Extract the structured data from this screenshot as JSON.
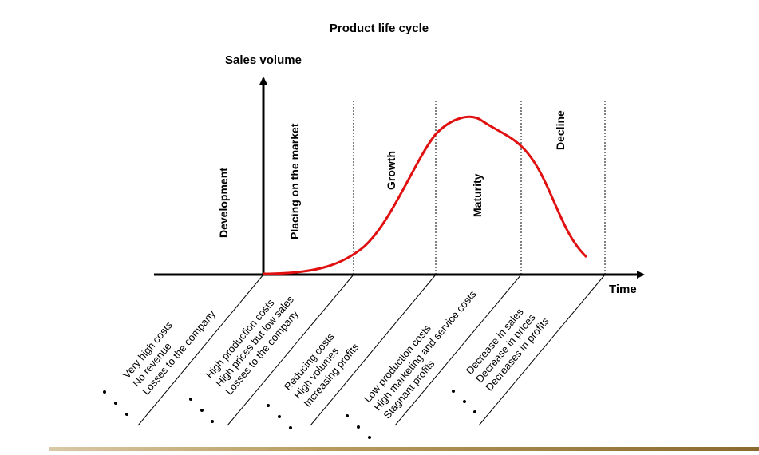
{
  "title": "Product life cycle",
  "y_axis_label": "Sales volume",
  "x_axis_label": "Time",
  "phases": [
    {
      "label": "Development"
    },
    {
      "label": "Placing on the market"
    },
    {
      "label": "Growth"
    },
    {
      "label": "Maturity"
    },
    {
      "label": "Decline"
    }
  ],
  "phase_notes": [
    {
      "lines": [
        "Very high costs",
        "No revenue",
        "Losses to the company"
      ]
    },
    {
      "lines": [
        "High production costs",
        "High prices but low sales",
        "Losses to the company"
      ]
    },
    {
      "lines": [
        "Reducing costs",
        "High volumes",
        "Increasing profits"
      ]
    },
    {
      "lines": [
        "Low production costs",
        "High marketing and service costs",
        "Stagnant profits"
      ]
    },
    {
      "lines": [
        "Decrease in sales",
        "Decrease in prices",
        "Decreases in profits"
      ]
    }
  ],
  "colors": {
    "curve": "#e01010",
    "axis": "#000000"
  }
}
